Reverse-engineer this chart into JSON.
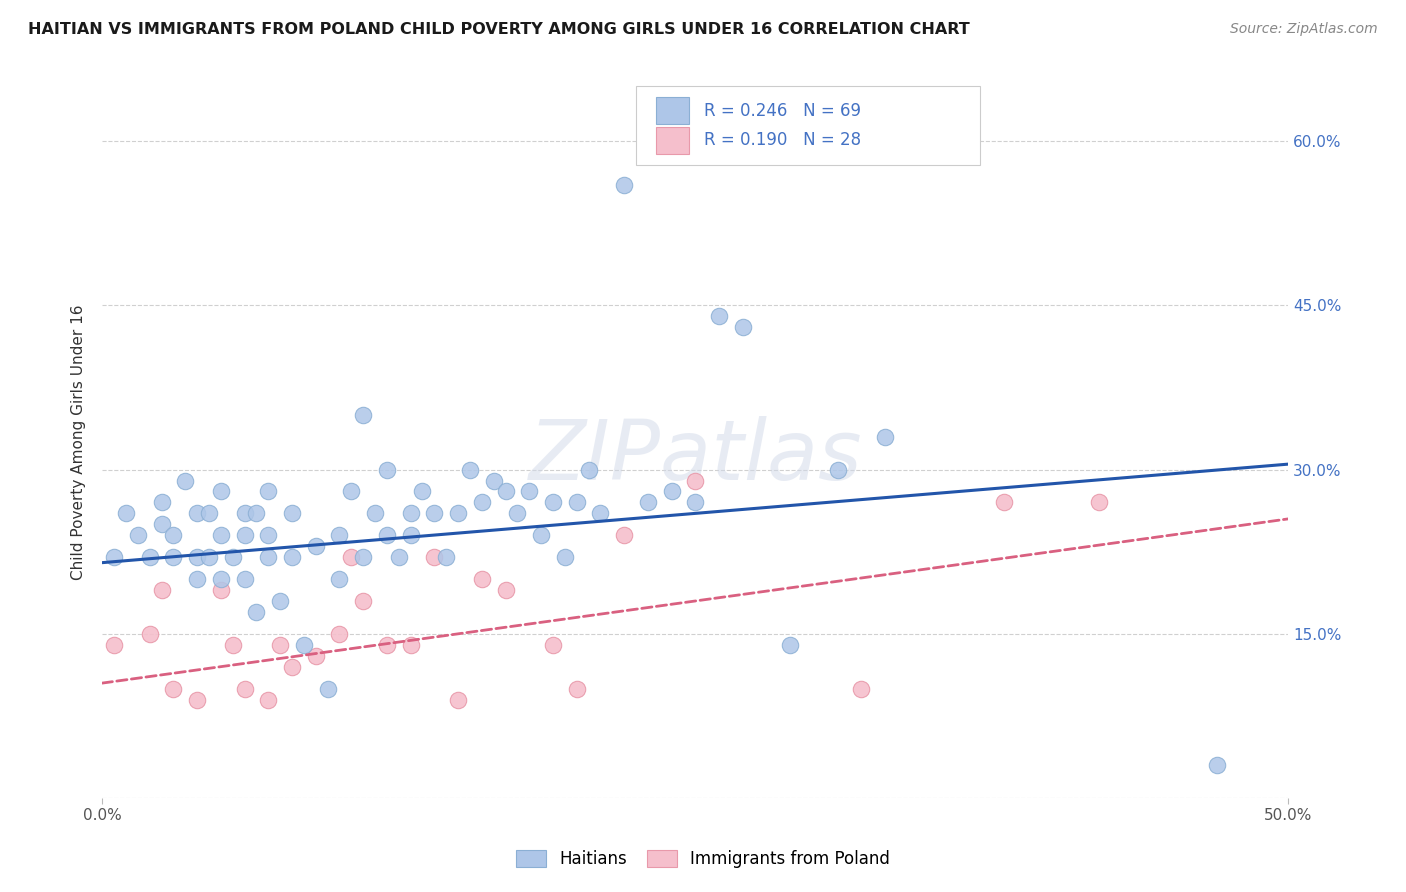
{
  "title": "HAITIAN VS IMMIGRANTS FROM POLAND CHILD POVERTY AMONG GIRLS UNDER 16 CORRELATION CHART",
  "source": "Source: ZipAtlas.com",
  "ylabel": "Child Poverty Among Girls Under 16",
  "x_min": 0.0,
  "x_max": 0.5,
  "y_min": 0.0,
  "y_max": 0.65,
  "y_ticks": [
    0.0,
    0.15,
    0.3,
    0.45,
    0.6
  ],
  "y_tick_labels": [
    "",
    "15.0%",
    "30.0%",
    "45.0%",
    "60.0%"
  ],
  "grid_color": "#d0d0d0",
  "background_color": "#ffffff",
  "watermark": "ZIPatlas",
  "haiti_color": "#aec6e8",
  "haiti_edge_color": "#8bafd4",
  "poland_color": "#f5bfcc",
  "poland_edge_color": "#e899aa",
  "haiti_line_color": "#2255aa",
  "poland_line_color": "#d96080",
  "legend_text_color": "#4472c4",
  "legend_haiti_r": "0.246",
  "legend_haiti_n": "69",
  "legend_poland_r": "0.190",
  "legend_poland_n": "28",
  "haiti_scatter_x": [
    0.005,
    0.01,
    0.015,
    0.02,
    0.025,
    0.025,
    0.03,
    0.03,
    0.035,
    0.04,
    0.04,
    0.04,
    0.045,
    0.045,
    0.05,
    0.05,
    0.05,
    0.055,
    0.06,
    0.06,
    0.06,
    0.065,
    0.065,
    0.07,
    0.07,
    0.07,
    0.075,
    0.08,
    0.08,
    0.085,
    0.09,
    0.095,
    0.1,
    0.1,
    0.105,
    0.11,
    0.11,
    0.115,
    0.12,
    0.12,
    0.125,
    0.13,
    0.13,
    0.135,
    0.14,
    0.145,
    0.15,
    0.155,
    0.16,
    0.165,
    0.17,
    0.175,
    0.18,
    0.185,
    0.19,
    0.195,
    0.2,
    0.205,
    0.21,
    0.22,
    0.23,
    0.24,
    0.25,
    0.26,
    0.27,
    0.29,
    0.31,
    0.33,
    0.47
  ],
  "haiti_scatter_y": [
    0.22,
    0.26,
    0.24,
    0.22,
    0.27,
    0.25,
    0.24,
    0.22,
    0.29,
    0.22,
    0.26,
    0.2,
    0.26,
    0.22,
    0.24,
    0.2,
    0.28,
    0.22,
    0.24,
    0.2,
    0.26,
    0.26,
    0.17,
    0.22,
    0.24,
    0.28,
    0.18,
    0.22,
    0.26,
    0.14,
    0.23,
    0.1,
    0.24,
    0.2,
    0.28,
    0.22,
    0.35,
    0.26,
    0.24,
    0.3,
    0.22,
    0.26,
    0.24,
    0.28,
    0.26,
    0.22,
    0.26,
    0.3,
    0.27,
    0.29,
    0.28,
    0.26,
    0.28,
    0.24,
    0.27,
    0.22,
    0.27,
    0.3,
    0.26,
    0.56,
    0.27,
    0.28,
    0.27,
    0.44,
    0.43,
    0.14,
    0.3,
    0.33,
    0.03
  ],
  "poland_scatter_x": [
    0.005,
    0.02,
    0.025,
    0.03,
    0.04,
    0.05,
    0.055,
    0.06,
    0.07,
    0.075,
    0.08,
    0.09,
    0.1,
    0.105,
    0.11,
    0.12,
    0.13,
    0.14,
    0.15,
    0.16,
    0.17,
    0.19,
    0.2,
    0.22,
    0.25,
    0.32,
    0.38,
    0.42
  ],
  "poland_scatter_y": [
    0.14,
    0.15,
    0.19,
    0.1,
    0.09,
    0.19,
    0.14,
    0.1,
    0.09,
    0.14,
    0.12,
    0.13,
    0.15,
    0.22,
    0.18,
    0.14,
    0.14,
    0.22,
    0.09,
    0.2,
    0.19,
    0.14,
    0.1,
    0.24,
    0.29,
    0.1,
    0.27,
    0.27
  ],
  "haiti_line_x0": 0.0,
  "haiti_line_y0": 0.215,
  "haiti_line_x1": 0.5,
  "haiti_line_y1": 0.305,
  "poland_line_x0": 0.0,
  "poland_line_y0": 0.105,
  "poland_line_x1": 0.5,
  "poland_line_y1": 0.255
}
